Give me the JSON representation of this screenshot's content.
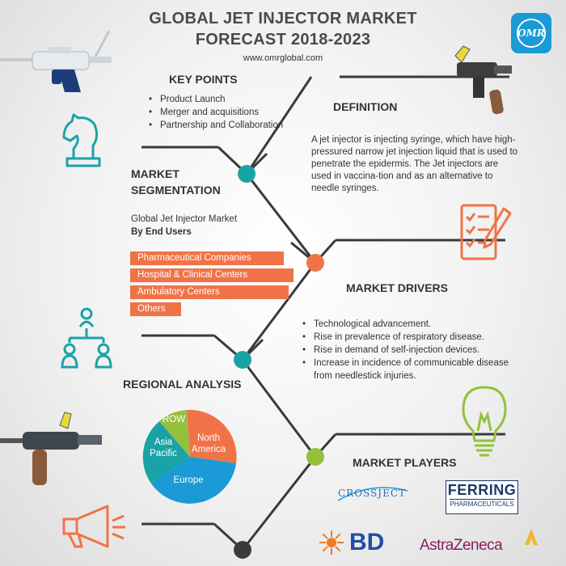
{
  "header": {
    "title_line1": "GLOBAL JET INJECTOR MARKET",
    "title_line2": "FORECAST 2018-2023",
    "url": "www.omrglobal.com",
    "logo_text": "OMR"
  },
  "key_points": {
    "heading": "KEY POINTS",
    "items": [
      "Product Launch",
      "Merger and acquisitions",
      "Partnership and Collaboration"
    ]
  },
  "definition": {
    "heading": "DEFINITION",
    "text": "A jet injector is injecting syringe, which have high-pressured narrow jet injection liquid that is used to penetrate the epidermis. The Jet injectors are used in vaccina-tion and as an alternative to needle syringes."
  },
  "segmentation": {
    "heading_line1": "MARKET",
    "heading_line2": "SEGMENTATION",
    "subtitle": "Global Jet Injector Market",
    "by": "By End Users",
    "items": [
      "Pharmaceutical Companies",
      "Hospital & Clinical Centers",
      "Ambulatory Centers",
      "Others"
    ]
  },
  "drivers": {
    "heading": "MARKET DRIVERS",
    "items": [
      "Technological advancement.",
      "Rise in prevalence of respiratory disease.",
      "Rise in demand of self-injection devices.",
      "Increase in incidence of communicable disease from needlestick injuries."
    ]
  },
  "regional": {
    "heading": "REGIONAL ANALYSIS",
    "segments": [
      "North America",
      "Europe",
      "Asia Pacific",
      "ROW"
    ]
  },
  "players": {
    "heading": "MARKET PLAYERS",
    "companies": [
      "CROSSJECT",
      "FERRING",
      "PHARMACEUTICALS",
      "BD",
      "AstraZeneca"
    ]
  },
  "colors": {
    "accent_orange": "#f07348",
    "accent_teal": "#1aa3a7",
    "accent_green": "#93c13c",
    "accent_blue": "#1a9ad6",
    "spine": "#3a3a3a"
  },
  "icons": [
    "jet-injector-gun-image",
    "chess-knight-icon",
    "checklist-pencil-icon",
    "org-chart-icon",
    "lightbulb-icon",
    "megaphone-icon"
  ]
}
